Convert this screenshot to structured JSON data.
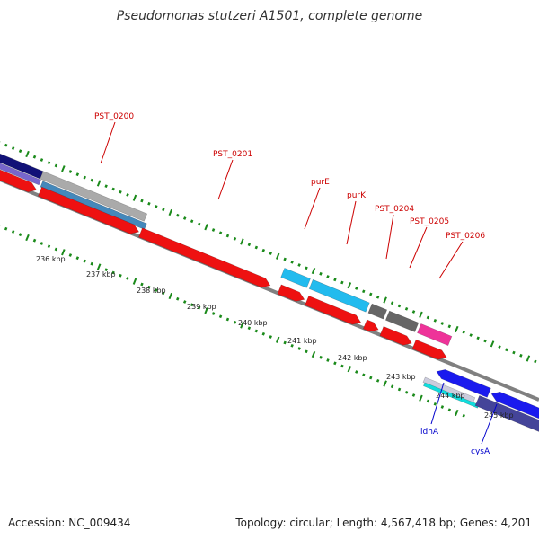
{
  "title": "Pseudomonas stutzeri A1501, complete genome",
  "footer": {
    "accession": "Accession: NC_009434",
    "summary": "Topology: circular; Length: 4,567,418 bp; Genes: 4,201"
  },
  "colors": {
    "backbone": "#808080",
    "tick": "#1a8a1a",
    "forward_label": "#cc0000",
    "reverse_label": "#0000cc",
    "red_feature": "#ee1111",
    "light_blue_feature": "#22bbee",
    "dark_gray_feature": "#666666",
    "pink_feature": "#ee3399",
    "blue_feature": "#1a1aee",
    "navy_feature": "#111177",
    "slate_feature": "#444499"
  },
  "scale_labels": [
    "236 kbp",
    "237 kbp",
    "238 kbp",
    "239 kbp",
    "240 kbp",
    "241 kbp",
    "242 kbp",
    "243 kbp",
    "244 kbp",
    "245 kbp"
  ],
  "gene_labels": [
    {
      "text": "PST_0200",
      "strand": "forward"
    },
    {
      "text": "PST_0201",
      "strand": "forward"
    },
    {
      "text": "purE",
      "strand": "forward"
    },
    {
      "text": "purK",
      "strand": "forward"
    },
    {
      "text": "PST_0204",
      "strand": "forward"
    },
    {
      "text": "PST_0205",
      "strand": "forward"
    },
    {
      "text": "PST_0206",
      "strand": "forward"
    },
    {
      "text": "ldhA",
      "strand": "reverse"
    },
    {
      "text": "cysA",
      "strand": "reverse"
    }
  ]
}
